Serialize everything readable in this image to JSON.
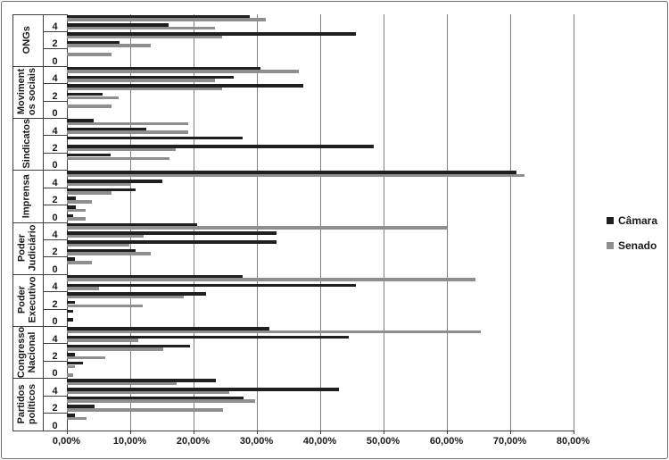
{
  "chart_data": {
    "type": "bar",
    "orientation": "horizontal",
    "title": "",
    "x_axis": {
      "min": 0,
      "max": 80,
      "step": 10,
      "tick_labels": [
        "0,00%",
        "10,00%",
        "20,00%",
        "30,00%",
        "40,00%",
        "50,00%",
        "60,00%",
        "70,00%",
        "80,00%"
      ],
      "unit": "percent",
      "grid": true
    },
    "y_axis": {
      "sub_levels_per_group": [
        "0",
        "1",
        "2",
        "3",
        "4",
        "5"
      ],
      "labeled_sub_levels": [
        "0",
        "2",
        "4"
      ]
    },
    "legend": {
      "position": "right",
      "items": [
        {
          "name": "Câmara",
          "color": "#1f1f1f"
        },
        {
          "name": "Senado",
          "color": "#8e8e8e"
        }
      ]
    },
    "groups": [
      {
        "label": "ONGs",
        "label_lines": [
          "ONGs"
        ],
        "bars": [
          {
            "level": 5,
            "camara": 28.9,
            "senado": 31.4
          },
          {
            "level": 4,
            "camara": 16.1,
            "senado": 23.4
          },
          {
            "level": 3,
            "camara": 45.6,
            "senado": 24.5
          },
          {
            "level": 2,
            "camara": 8.3,
            "senado": 13.2
          },
          {
            "level": 1,
            "camara": 0,
            "senado": 7.1
          },
          {
            "level": 0,
            "camara": 0,
            "senado": 0
          }
        ]
      },
      {
        "label": "Movimentos sociais",
        "label_lines": [
          "Moviment",
          "os sociais"
        ],
        "bars": [
          {
            "level": 5,
            "camara": 30.5,
            "senado": 36.6
          },
          {
            "level": 4,
            "camara": 26.4,
            "senado": 23.4
          },
          {
            "level": 3,
            "camara": 37.3,
            "senado": 24.5
          },
          {
            "level": 2,
            "camara": 5.6,
            "senado": 8.1
          },
          {
            "level": 1,
            "camara": 0,
            "senado": 7.0
          },
          {
            "level": 0,
            "camara": 0,
            "senado": 0
          }
        ]
      },
      {
        "label": "Sindicatos",
        "label_lines": [
          "Sindicatos"
        ],
        "bars": [
          {
            "level": 5,
            "camara": 4.2,
            "senado": 19.2
          },
          {
            "level": 4,
            "camara": 12.5,
            "senado": 19.2
          },
          {
            "level": 3,
            "camara": 27.7,
            "senado": 0
          },
          {
            "level": 2,
            "camara": 48.5,
            "senado": 17.2
          },
          {
            "level": 1,
            "camara": 6.9,
            "senado": 16.2
          },
          {
            "level": 0,
            "camara": 0,
            "senado": 0
          }
        ]
      },
      {
        "label": "Imprensa",
        "label_lines": [
          "Imprensa"
        ],
        "bars": [
          {
            "level": 5,
            "camara": 71.0,
            "senado": 72.3
          },
          {
            "level": 4,
            "camara": 15.1,
            "senado": 10.1
          },
          {
            "level": 3,
            "camara": 10.9,
            "senado": 7.1
          },
          {
            "level": 2,
            "camara": 1.4,
            "senado": 3.9
          },
          {
            "level": 1,
            "camara": 1.4,
            "senado": 3.0
          },
          {
            "level": 0,
            "camara": 1.0,
            "senado": 3.0
          }
        ]
      },
      {
        "label": "Poder Judiciário",
        "label_lines": [
          "Poder",
          "Judiciário"
        ],
        "bars": [
          {
            "level": 5,
            "camara": 20.6,
            "senado": 60.0
          },
          {
            "level": 4,
            "camara": 33.1,
            "senado": 12.1
          },
          {
            "level": 3,
            "camara": 33.1,
            "senado": 9.8
          },
          {
            "level": 2,
            "camara": 10.9,
            "senado": 13.2
          },
          {
            "level": 1,
            "camara": 1.3,
            "senado": 4.0
          },
          {
            "level": 0,
            "camara": 0,
            "senado": 0
          }
        ]
      },
      {
        "label": "Poder Executivo",
        "label_lines": [
          "Poder",
          "Executivo"
        ],
        "bars": [
          {
            "level": 5,
            "camara": 27.7,
            "senado": 64.5
          },
          {
            "level": 4,
            "camara": 45.7,
            "senado": 5.0
          },
          {
            "level": 3,
            "camara": 22.0,
            "senado": 18.4
          },
          {
            "level": 2,
            "camara": 1.2,
            "senado": 12.0
          },
          {
            "level": 1,
            "camara": 1.0,
            "senado": 0
          },
          {
            "level": 0,
            "camara": 1.0,
            "senado": 0
          }
        ]
      },
      {
        "label": "Congresso Nacional",
        "label_lines": [
          "Congresso",
          "Nacional"
        ],
        "bars": [
          {
            "level": 5,
            "camara": 32.0,
            "senado": 65.4
          },
          {
            "level": 4,
            "camara": 44.5,
            "senado": 11.2
          },
          {
            "level": 3,
            "camara": 19.4,
            "senado": 15.2
          },
          {
            "level": 2,
            "camara": 1.2,
            "senado": 6.1
          },
          {
            "level": 1,
            "camara": 2.5,
            "senado": 1.2
          },
          {
            "level": 0,
            "camara": 0,
            "senado": 1.0
          }
        ]
      },
      {
        "label": "Partidos políticos",
        "label_lines": [
          "Partidos",
          "políticos"
        ],
        "bars": [
          {
            "level": 5,
            "camara": 23.5,
            "senado": 17.3
          },
          {
            "level": 4,
            "camara": 43.0,
            "senado": 25.7
          },
          {
            "level": 3,
            "camara": 27.9,
            "senado": 29.7
          },
          {
            "level": 2,
            "camara": 4.3,
            "senado": 24.7
          },
          {
            "level": 1,
            "camara": 1.2,
            "senado": 3.1
          },
          {
            "level": 0,
            "camara": 0,
            "senado": 0
          }
        ]
      }
    ],
    "colors": {
      "camara": "#1f1f1f",
      "senado": "#8e8e8e",
      "gridline": "#808080",
      "axis": "#404040",
      "text": "#1a1a1a"
    }
  }
}
